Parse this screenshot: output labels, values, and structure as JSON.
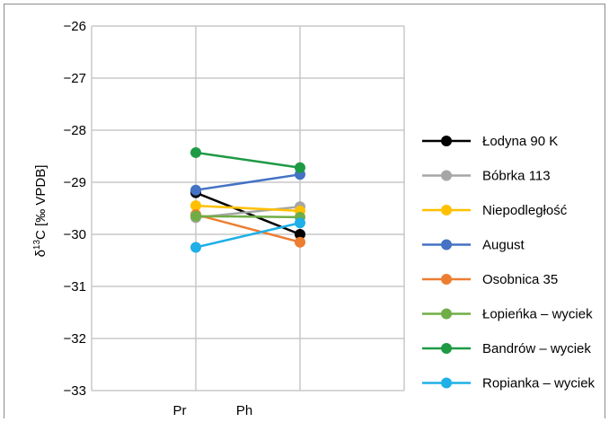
{
  "chart_data": {
    "type": "line",
    "categories": [
      "Pr",
      "Ph"
    ],
    "ylabel_prefix": "δ",
    "ylabel_superscript": "13",
    "ylabel_rest": "C [‰ VPDB]",
    "ylim": [
      -33,
      -26
    ],
    "yticks": [
      -26,
      -27,
      -28,
      -29,
      -30,
      -31,
      -32,
      -33
    ],
    "ytick_labels": [
      "−26",
      "−27",
      "−28",
      "−29",
      "−30",
      "−31",
      "−32",
      "−33"
    ],
    "grid": true,
    "legend_position": "right",
    "series": [
      {
        "name": "Łodyna 90 K",
        "color": "#000000",
        "values": [
          -29.2,
          -30.0
        ]
      },
      {
        "name": "Bóbrka 113",
        "color": "#a6a6a6",
        "values": [
          -29.68,
          -29.47
        ]
      },
      {
        "name": "Niepodległość",
        "color": "#ffc000",
        "values": [
          -29.45,
          -29.55
        ]
      },
      {
        "name": "August",
        "color": "#4472c4",
        "values": [
          -29.15,
          -28.85
        ]
      },
      {
        "name": "Osobnica 35",
        "color": "#ed7d31",
        "values": [
          -29.62,
          -30.15
        ]
      },
      {
        "name": "Łopieńka – wyciek",
        "color": "#70ad47",
        "values": [
          -29.65,
          -29.67
        ]
      },
      {
        "name": "Bandrów – wyciek",
        "color": "#1e9a44",
        "values": [
          -28.43,
          -28.72
        ]
      },
      {
        "name": "Ropianka – wyciek",
        "color": "#1eb0e6",
        "values": [
          -30.25,
          -29.78
        ]
      }
    ]
  }
}
